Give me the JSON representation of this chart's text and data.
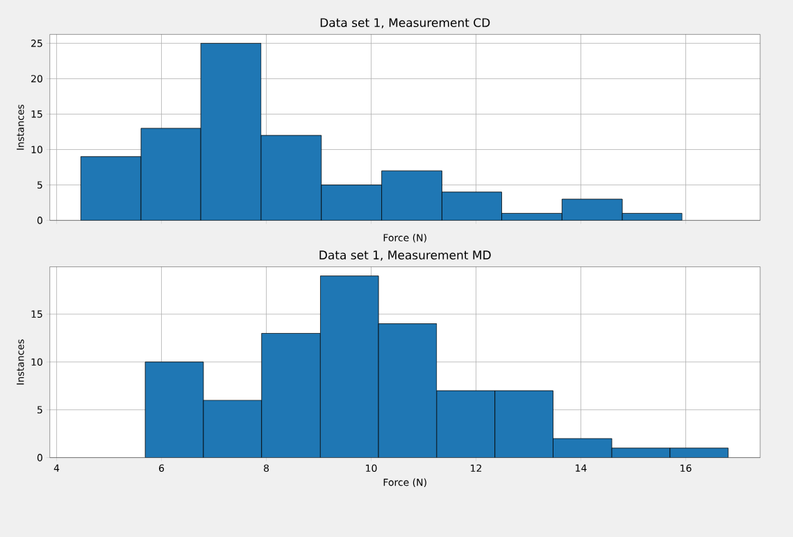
{
  "chart_data": [
    {
      "type": "histogram",
      "title": "Data set 1, Measurement CD",
      "xlabel": "Force (N)",
      "ylabel": "Instances",
      "color": "#1f77b4",
      "bins": [
        4.46,
        5.61,
        6.75,
        7.9,
        9.05,
        10.2,
        11.35,
        12.49,
        13.64,
        14.79,
        15.93
      ],
      "values": [
        9,
        13,
        25,
        12,
        5,
        7,
        4,
        1,
        3,
        1
      ],
      "xlim": [
        3.87,
        17.42
      ],
      "xticks": [
        4,
        6,
        8,
        10,
        12,
        14,
        16
      ],
      "ylim": [
        0,
        26.25
      ],
      "yticks": [
        0,
        5,
        10,
        15,
        20,
        25
      ],
      "grid": true,
      "tick_labels": "y"
    },
    {
      "type": "histogram",
      "title": "Data set 1, Measurement MD",
      "xlabel": "Force (N)",
      "ylabel": "Instances",
      "color": "#1f77b4",
      "bins": [
        5.69,
        6.8,
        7.91,
        9.03,
        10.14,
        11.25,
        12.36,
        13.47,
        14.59,
        15.7,
        16.81
      ],
      "values": [
        10,
        6,
        13,
        19,
        14,
        7,
        7,
        2,
        1,
        1
      ],
      "xlim": [
        3.87,
        17.42
      ],
      "xticks": [
        4,
        6,
        8,
        10,
        12,
        14,
        16
      ],
      "ylim": [
        0,
        19.95
      ],
      "yticks": [
        0,
        5,
        10,
        15
      ],
      "grid": true
    }
  ]
}
